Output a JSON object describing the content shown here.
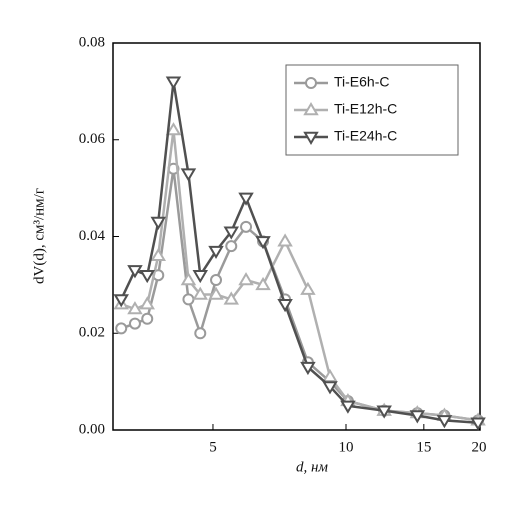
{
  "chart_data": {
    "type": "line",
    "xlabel": "d, нм",
    "ylabel": "dV(d), см³/нм/г",
    "xscale": "log",
    "xlim": [
      2.97,
      20.1
    ],
    "xticks": [
      5,
      10,
      15,
      20
    ],
    "ylim": [
      0,
      0.08
    ],
    "yticks": [
      {
        "value": 0,
        "label": "0.00"
      },
      {
        "value": 0.02,
        "label": "0.02"
      },
      {
        "value": 0.04,
        "label": "0.04"
      },
      {
        "value": 0.06,
        "label": "0.06"
      },
      {
        "value": 0.08,
        "label": "0.08"
      }
    ],
    "legend": "upper right",
    "x": [
      3.1,
      3.33,
      3.55,
      3.76,
      4.07,
      4.4,
      4.68,
      5.08,
      5.5,
      5.94,
      6.49,
      7.28,
      8.2,
      9.2,
      10.1,
      12.2,
      14.5,
      16.7,
      19.9
    ],
    "series": [
      {
        "name": "Ti-E6h-C",
        "color": "#9a9a9a",
        "marker": "circle",
        "values": [
          0.021,
          0.022,
          0.023,
          0.032,
          0.054,
          0.027,
          0.02,
          0.031,
          0.038,
          0.042,
          0.039,
          0.027,
          0.014,
          0.01,
          0.006,
          0.004,
          0.0035,
          0.003,
          0.002
        ]
      },
      {
        "name": "Ti-E12h-C",
        "color": "#b0b0b0",
        "marker": "triangle-up",
        "values": [
          0.026,
          0.025,
          0.026,
          0.036,
          0.062,
          0.031,
          0.028,
          0.028,
          0.027,
          0.031,
          0.03,
          0.039,
          0.029,
          0.011,
          0.006,
          0.004,
          0.0035,
          0.003,
          0.002
        ]
      },
      {
        "name": "Ti-E24h-C",
        "color": "#505050",
        "marker": "triangle-down",
        "values": [
          0.027,
          0.033,
          0.032,
          0.043,
          0.072,
          0.053,
          0.032,
          0.037,
          0.041,
          0.048,
          0.039,
          0.026,
          0.013,
          0.009,
          0.005,
          0.004,
          0.003,
          0.002,
          0.0015
        ]
      }
    ]
  }
}
